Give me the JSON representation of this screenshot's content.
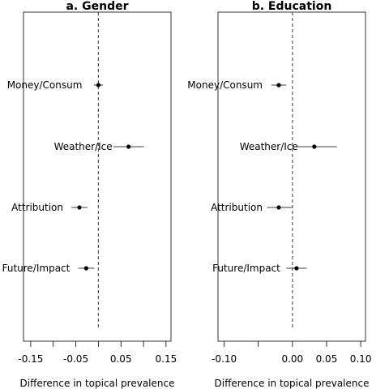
{
  "chart_data": [
    {
      "type": "scatter",
      "title": "a. Gender",
      "xlabel": "Difference in topical prevalence",
      "ylabel": "",
      "xlim": [
        -0.166,
        0.161
      ],
      "xticks": [
        -0.15,
        -0.1,
        -0.05,
        0,
        0.05,
        0.1,
        0.15
      ],
      "xtick_labels": [
        "-0.15",
        "",
        "-0.05",
        "",
        "0.05",
        "",
        "0.15"
      ],
      "reference_line": 0,
      "categories": [
        "Money/Consum",
        "Weather/Ice",
        "Attribution",
        "Future/Impact"
      ],
      "estimates": [
        0.0,
        0.067,
        -0.042,
        -0.027
      ],
      "ci_low": [
        -0.01,
        0.033,
        -0.06,
        -0.045
      ],
      "ci_high": [
        0.01,
        0.101,
        -0.024,
        -0.009
      ]
    },
    {
      "type": "scatter",
      "title": "b. Education",
      "xlabel": "Difference in topical prevalence",
      "ylabel": "",
      "xlim": [
        -0.109,
        0.107
      ],
      "xticks": [
        -0.1,
        -0.05,
        0,
        0.05,
        0.1
      ],
      "xtick_labels": [
        "-0.10",
        "",
        "0.00",
        "0.05",
        "0.10"
      ],
      "reference_line": 0,
      "categories": [
        "Money/Consum",
        "Weather/Ice",
        "Attribution",
        "Future/Impact"
      ],
      "estimates": [
        -0.02,
        0.032,
        -0.02,
        0.006
      ],
      "ci_low": [
        -0.031,
        0.0,
        -0.037,
        -0.009
      ],
      "ci_high": [
        -0.009,
        0.065,
        -0.001,
        0.021
      ]
    }
  ],
  "colors": {
    "point": "#000000",
    "ci": "#000000",
    "reference": "#555555",
    "frame": "#000000"
  }
}
